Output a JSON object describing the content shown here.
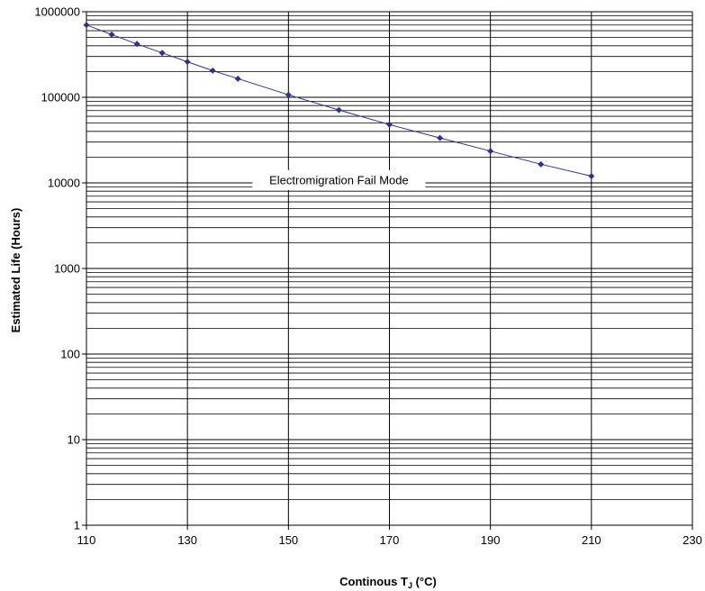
{
  "chart_data": {
    "type": "line",
    "title": "",
    "xlabel_main": "Continous T",
    "xlabel_sub": "J",
    "xlabel_unit": " (°C)",
    "ylabel": "Estimated Life (Hours)",
    "xlim": [
      110,
      230
    ],
    "ylim": [
      1,
      1000000
    ],
    "y_scale": "log",
    "x_ticks": [
      "110",
      "130",
      "150",
      "170",
      "190",
      "210",
      "230"
    ],
    "y_ticks": [
      "1",
      "10",
      "100",
      "1000",
      "10000",
      "100000",
      "1000000"
    ],
    "grid": true,
    "series": [
      {
        "color": "#2e3192",
        "x": [
          110,
          115,
          120,
          125,
          130,
          135,
          140,
          150,
          160,
          170,
          180,
          190,
          200,
          210
        ],
        "values": [
          700000,
          540000,
          420000,
          330000,
          260000,
          205000,
          165000,
          107000,
          71000,
          48000,
          33500,
          23500,
          16500,
          12000
        ]
      }
    ],
    "annotation": "Electromigration Fail Mode"
  }
}
